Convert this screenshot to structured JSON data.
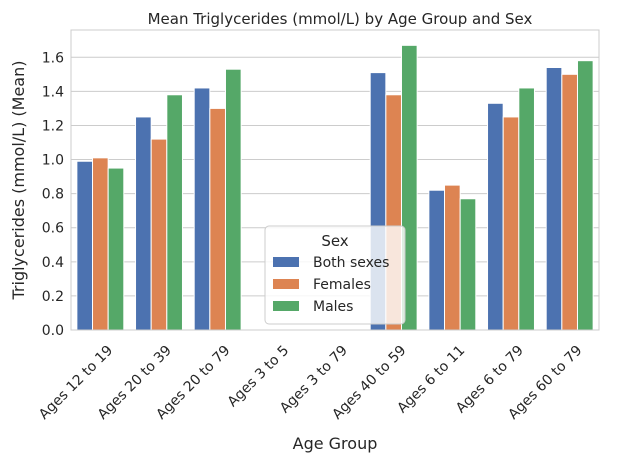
{
  "chart_data": {
    "type": "bar",
    "title": "Mean Triglycerides (mmol/L) by Age Group and Sex",
    "xlabel": "Age Group",
    "ylabel": "Triglycerides (mmol/L) (Mean)",
    "ylim": [
      0,
      1.76
    ],
    "yticks": [
      "0.0",
      "0.2",
      "0.4",
      "0.6",
      "0.8",
      "1.0",
      "1.2",
      "1.4",
      "1.6"
    ],
    "grid": true,
    "legend_position": "lower-center",
    "legend_title": "Sex",
    "categories": [
      "Ages 12 to 19",
      "Ages 20 to 39",
      "Ages 20 to 79",
      "Ages 3 to 5",
      "Ages 3 to 79",
      "Ages 40 to 59",
      "Ages 6 to 11",
      "Ages 6 to 79",
      "Ages 60 to 79"
    ],
    "series": [
      {
        "name": "Both sexes",
        "color": "#4c72b0",
        "values": [
          0.99,
          1.25,
          1.42,
          null,
          null,
          1.51,
          0.82,
          1.33,
          1.54
        ]
      },
      {
        "name": "Females",
        "color": "#dd8452",
        "values": [
          1.01,
          1.12,
          1.3,
          null,
          null,
          1.38,
          0.85,
          1.25,
          1.5
        ]
      },
      {
        "name": "Males",
        "color": "#55a868",
        "values": [
          0.95,
          1.38,
          1.53,
          null,
          null,
          1.67,
          0.77,
          1.42,
          1.58
        ]
      }
    ]
  }
}
